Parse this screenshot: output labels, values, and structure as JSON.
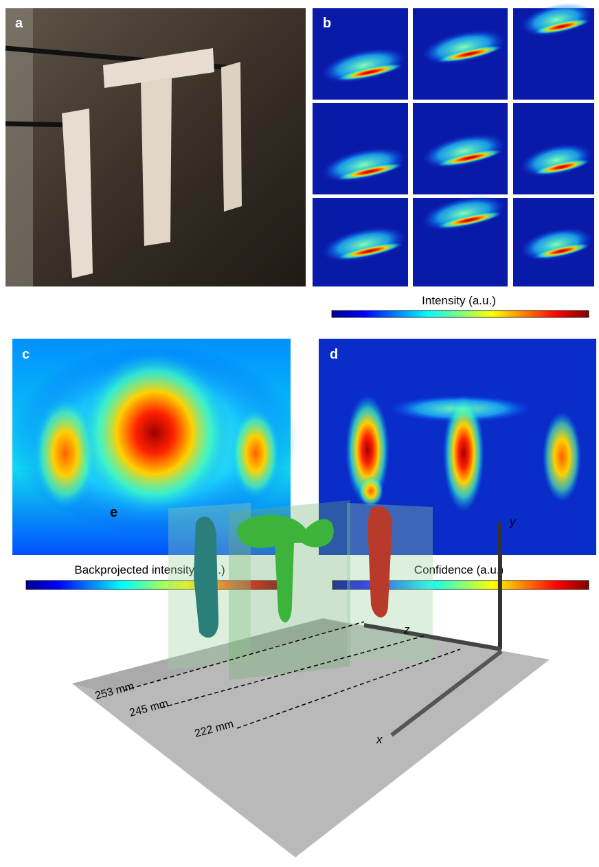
{
  "panels": {
    "a": "a",
    "b": "b",
    "c": "c",
    "d": "d",
    "e": "e"
  },
  "colorbars": [
    "Intensity (a.u.)",
    "Backprojected intensity (a.u.)",
    "Confidence (a.u.)"
  ],
  "panel_e": {
    "distances": [
      "253 mm",
      "245 mm",
      "222 mm"
    ],
    "axes": {
      "x": "x",
      "y": "y",
      "z": "z"
    }
  }
}
